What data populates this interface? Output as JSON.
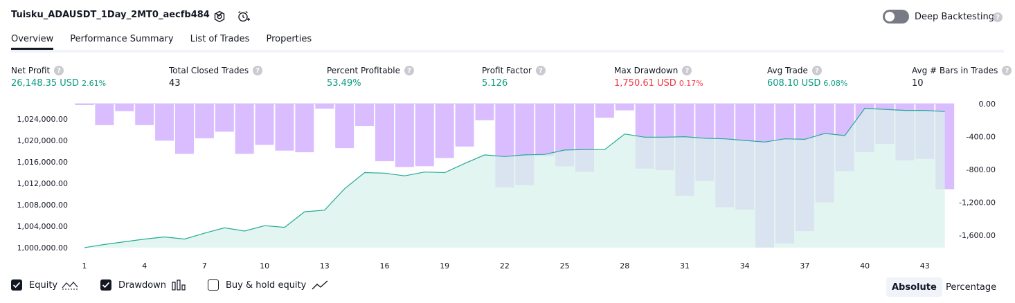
{
  "header": {
    "strategy_name": "Tuisku_ADAUSDT_1Day_2MT0_aecfb484",
    "deep_backtesting_label": "Deep Backtesting",
    "deep_backtesting_on": false
  },
  "tabs": [
    {
      "label": "Overview",
      "active": true
    },
    {
      "label": "Performance Summary",
      "active": false
    },
    {
      "label": "List of Trades",
      "active": false
    },
    {
      "label": "Properties",
      "active": false
    }
  ],
  "stats": [
    {
      "label": "Net Profit",
      "value": "26,148.35 USD",
      "pct": "2.61%",
      "tone": "pos"
    },
    {
      "label": "Total Closed Trades",
      "value": "43",
      "pct": "",
      "tone": "neutral"
    },
    {
      "label": "Percent Profitable",
      "value": "53.49%",
      "pct": "",
      "tone": "pos"
    },
    {
      "label": "Profit Factor",
      "value": "5.126",
      "pct": "",
      "tone": "pos"
    },
    {
      "label": "Max Drawdown",
      "value": "1,750.61 USD",
      "pct": "0.17%",
      "tone": "neg"
    },
    {
      "label": "Avg Trade",
      "value": "608.10 USD",
      "pct": "6.08%",
      "tone": "pos"
    },
    {
      "label": "Avg # Bars in Trades",
      "value": "10",
      "pct": "",
      "tone": "neutral"
    }
  ],
  "legend": {
    "equity": {
      "label": "Equity",
      "checked": true
    },
    "drawdown": {
      "label": "Drawdown",
      "checked": true
    },
    "buy_hold": {
      "label": "Buy & hold equity",
      "checked": false
    }
  },
  "view_toggle": {
    "absolute": "Absolute",
    "percentage": "Percentage",
    "active": "absolute"
  },
  "colors": {
    "equity_line": "#22ab94",
    "equity_fill": "#d9f2ec",
    "drawdown_bar": "#d9bdff",
    "positive": "#089981",
    "negative": "#f23645"
  },
  "icons": {
    "dropdown": "chevron-down-icon",
    "settings": "gear-icon",
    "alert": "alarm-clock-icon",
    "help": "question-icon"
  },
  "chart_data": {
    "type": "area",
    "x": [
      1,
      2,
      3,
      4,
      5,
      6,
      7,
      8,
      9,
      10,
      11,
      12,
      13,
      14,
      15,
      16,
      17,
      18,
      19,
      20,
      21,
      22,
      23,
      24,
      25,
      26,
      27,
      28,
      29,
      30,
      31,
      32,
      33,
      34,
      35,
      36,
      37,
      38,
      39,
      40,
      41,
      42,
      43,
      44
    ],
    "x_ticks": [
      1,
      4,
      7,
      10,
      13,
      16,
      19,
      22,
      25,
      28,
      31,
      34,
      37,
      40,
      43
    ],
    "series": [
      {
        "role": "equity",
        "axis": "left",
        "values": [
          1000000,
          1000600,
          1001100,
          1001600,
          1002000,
          1001600,
          1002700,
          1003700,
          1003100,
          1004100,
          1003800,
          1006700,
          1007000,
          1011000,
          1014000,
          1013900,
          1013400,
          1014100,
          1014000,
          1015700,
          1017300,
          1017000,
          1017300,
          1017400,
          1018200,
          1018300,
          1018300,
          1021200,
          1020600,
          1020600,
          1020700,
          1020400,
          1020300,
          1020000,
          1019700,
          1020300,
          1020200,
          1021300,
          1020900,
          1026000,
          1025800,
          1025600,
          1025600,
          1025400
        ]
      },
      {
        "role": "drawdown",
        "axis": "right",
        "values": [
          0,
          -260,
          -90,
          -260,
          -450,
          -610,
          -420,
          -340,
          -610,
          -500,
          -570,
          -590,
          -60,
          -540,
          -270,
          -700,
          -770,
          -760,
          -660,
          -520,
          -200,
          -1020,
          -990,
          -640,
          -760,
          -830,
          -170,
          -80,
          -790,
          -810,
          -1120,
          -940,
          -1260,
          -1290,
          -1750,
          -1700,
          -1550,
          -1200,
          -820,
          -590,
          -490,
          -690,
          -670,
          -1040
        ]
      }
    ],
    "y_left": {
      "ticks": [
        1000000,
        1004000,
        1008000,
        1012000,
        1016000,
        1020000,
        1024000
      ],
      "tick_labels": [
        "1,000,000.00",
        "1,004,000.00",
        "1,008,000.00",
        "1,012,000.00",
        "1,016,000.00",
        "1,020,000.00",
        "1,024,000.00"
      ]
    },
    "y_right": {
      "ticks": [
        0,
        -400,
        -800,
        -1200,
        -1600
      ],
      "tick_labels": [
        "0.00",
        "-400.00",
        "-800.00",
        "-1,200.00",
        "-1,600.00"
      ]
    }
  }
}
